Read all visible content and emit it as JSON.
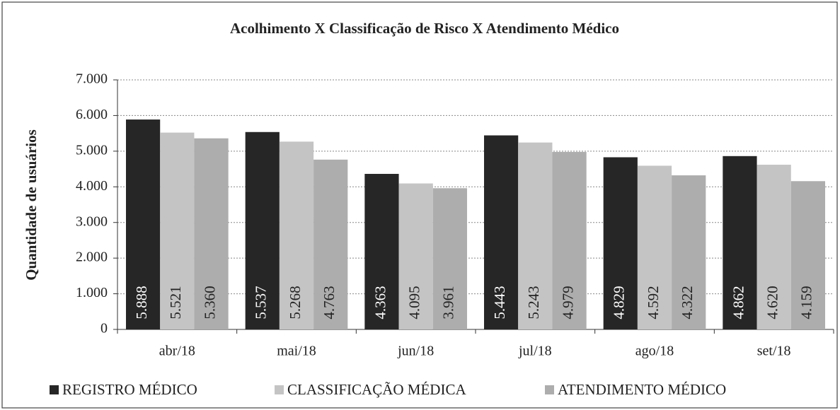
{
  "chart_data": {
    "type": "bar",
    "title": "Acolhimento  X Classificação de Risco X Atendimento  Médico",
    "y_label": "Quantidade  de usuários",
    "categories": [
      "abr/18",
      "mai/18",
      "jun/18",
      "jul/18",
      "ago/18",
      "set/18"
    ],
    "series": [
      {
        "name": "REGISTRO MÉDICO",
        "color": "#262626",
        "label_color": "#ffffff",
        "values": [
          5888,
          5537,
          4363,
          5443,
          4829,
          4862
        ],
        "value_labels": [
          "5.888",
          "5.537",
          "4.363",
          "5.443",
          "4.829",
          "4.862"
        ]
      },
      {
        "name": "CLASSIFICAÇÃO MÉDICA",
        "color": "#c4c4c4",
        "label_color": "#222222",
        "values": [
          5521,
          5268,
          4095,
          5243,
          4592,
          4620
        ],
        "value_labels": [
          "5.521",
          "5.268",
          "4.095",
          "5.243",
          "4.592",
          "4.620"
        ]
      },
      {
        "name": "ATENDIMENTO MÉDICO",
        "color": "#adadad",
        "label_color": "#222222",
        "values": [
          5360,
          4763,
          3961,
          4979,
          4322,
          4159
        ],
        "value_labels": [
          "5.360",
          "4.763",
          "3.961",
          "4.979",
          "4.322",
          "4.159"
        ]
      }
    ],
    "ylim": [
      0,
      7000
    ],
    "yticks": [
      0,
      {
        "value": 1000,
        "label": "1.000"
      },
      {
        "value": 2000,
        "label": "2.000"
      },
      {
        "value": 3000,
        "label": "3.000"
      },
      {
        "value": 4000,
        "label": "4.000"
      },
      {
        "value": 5000,
        "label": "5.000"
      },
      {
        "value": 6000,
        "label": "6.000"
      },
      {
        "value": 7000,
        "label": "7.000"
      }
    ],
    "grid": true,
    "legend": "bottom"
  }
}
